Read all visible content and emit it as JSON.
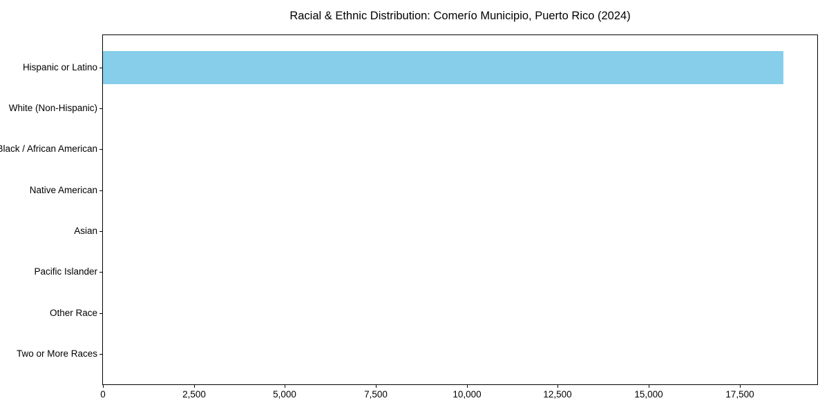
{
  "chart_data": {
    "type": "bar",
    "orientation": "horizontal",
    "title": "Racial & Ethnic Distribution: Comerío Municipio, Puerto Rico (2024)",
    "categories": [
      "Hispanic or Latino",
      "White (Non-Hispanic)",
      "Black / African American",
      "Native American",
      "Asian",
      "Pacific Islander",
      "Other Race",
      "Two or More Races"
    ],
    "values": [
      18700,
      0,
      0,
      0,
      0,
      0,
      0,
      0
    ],
    "xlabel": "",
    "ylabel": "",
    "xlim": [
      0,
      19635
    ],
    "xticks": [
      0,
      2500,
      5000,
      7500,
      10000,
      12500,
      15000,
      17500
    ],
    "xtick_labels": [
      "0",
      "2,500",
      "5,000",
      "7,500",
      "10,000",
      "12,500",
      "15,000",
      "17,500"
    ],
    "bar_color": "#87CEEB",
    "axis_color": "#000000",
    "background_color": "#ffffff",
    "grid": false,
    "legend": false
  }
}
